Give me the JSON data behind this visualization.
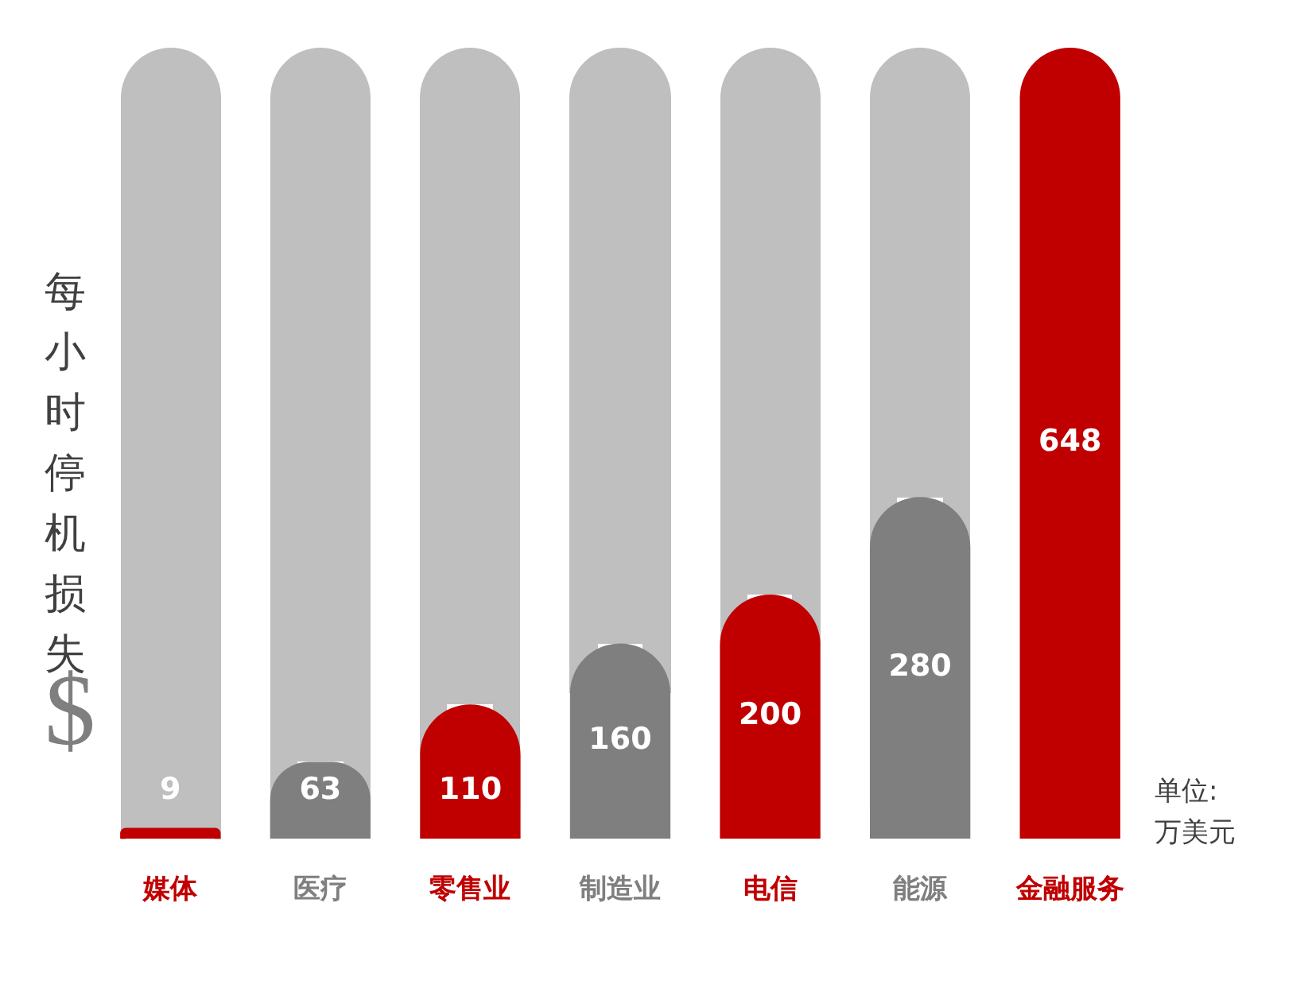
{
  "chart_data": {
    "type": "bar",
    "ylabel": "每小时停机损失",
    "categories": [
      "媒体",
      "医疗",
      "零售业",
      "制造业",
      "电信",
      "能源",
      "金融服务"
    ],
    "values": [
      9,
      63,
      110,
      160,
      200,
      280,
      648
    ],
    "colors": [
      "#c00000",
      "#7f7f7f",
      "#c00000",
      "#7f7f7f",
      "#c00000",
      "#7f7f7f",
      "#c00000"
    ],
    "data_labels": true,
    "grid": false,
    "legend": false,
    "annotations": [
      "$",
      "单位: 万美元"
    ]
  }
}
